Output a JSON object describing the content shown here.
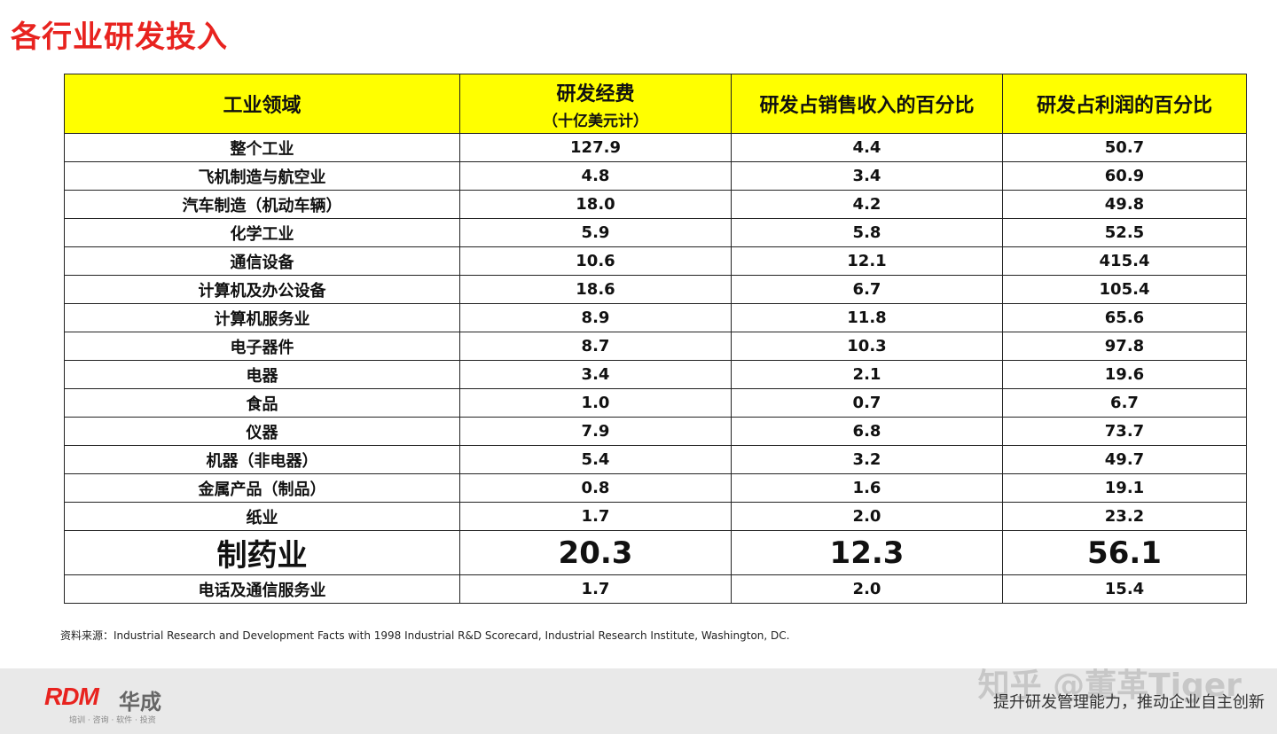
{
  "title": "各行业研发投入",
  "table": {
    "headers": [
      "工业领域",
      "研发经费",
      "研发占销售收入的百分比",
      "研发占利润的百分比"
    ],
    "header_sub": "（十亿美元计）",
    "rows": [
      {
        "industry": "整个工业",
        "rd": "127.9",
        "sales_pct": "4.4",
        "profit_pct": "50.7"
      },
      {
        "industry": "飞机制造与航空业",
        "rd": "4.8",
        "sales_pct": "3.4",
        "profit_pct": "60.9"
      },
      {
        "industry": "汽车制造（机动车辆）",
        "rd": "18.0",
        "sales_pct": "4.2",
        "profit_pct": "49.8"
      },
      {
        "industry": "化学工业",
        "rd": "5.9",
        "sales_pct": "5.8",
        "profit_pct": "52.5"
      },
      {
        "industry": "通信设备",
        "rd": "10.6",
        "sales_pct": "12.1",
        "profit_pct": "415.4"
      },
      {
        "industry": "计算机及办公设备",
        "rd": "18.6",
        "sales_pct": "6.7",
        "profit_pct": "105.4"
      },
      {
        "industry": "计算机服务业",
        "rd": "8.9",
        "sales_pct": "11.8",
        "profit_pct": "65.6"
      },
      {
        "industry": "电子器件",
        "rd": "8.7",
        "sales_pct": "10.3",
        "profit_pct": "97.8"
      },
      {
        "industry": "电器",
        "rd": "3.4",
        "sales_pct": "2.1",
        "profit_pct": "19.6"
      },
      {
        "industry": "食品",
        "rd": "1.0",
        "sales_pct": "0.7",
        "profit_pct": "6.7"
      },
      {
        "industry": "仪器",
        "rd": "7.9",
        "sales_pct": "6.8",
        "profit_pct": "73.7"
      },
      {
        "industry": "机器（非电器）",
        "rd": "5.4",
        "sales_pct": "3.2",
        "profit_pct": "49.7"
      },
      {
        "industry": "金属产品（制品）",
        "rd": "0.8",
        "sales_pct": "1.6",
        "profit_pct": "19.1"
      },
      {
        "industry": "纸业",
        "rd": "1.7",
        "sales_pct": "2.0",
        "profit_pct": "23.2"
      },
      {
        "industry": "制药业",
        "rd": "20.3",
        "sales_pct": "12.3",
        "profit_pct": "56.1"
      },
      {
        "industry": "电话及通信服务业",
        "rd": "1.7",
        "sales_pct": "2.0",
        "profit_pct": "15.4"
      }
    ],
    "highlight_color": "#e8140f"
  },
  "source": "资料来源：Industrial Research and Development Facts with 1998 Industrial R&D Scorecard, Industrial Research Institute, Washington, DC.",
  "footer": {
    "logo": "RDM",
    "logo_cn": "华成",
    "logo_sub": "培训 · 咨询 · 软件 · 投资",
    "watermark": "知乎 @董革Tiger",
    "tagline": "提升研发管理能力，推动企业自主创新"
  }
}
